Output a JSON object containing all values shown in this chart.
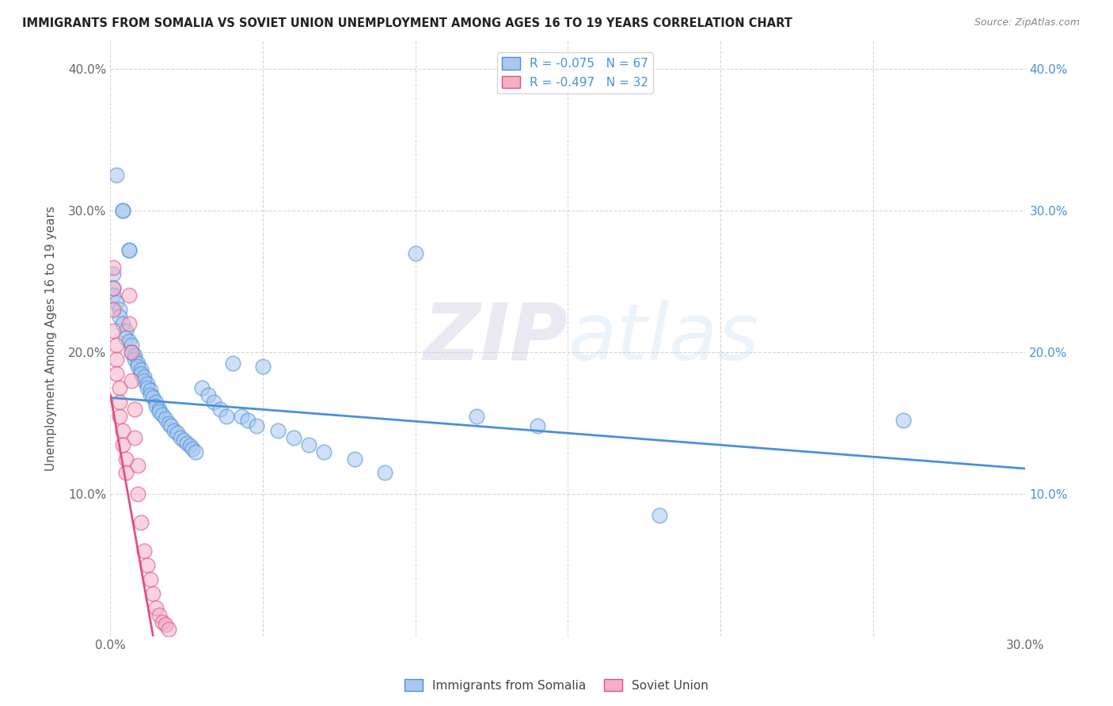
{
  "title": "IMMIGRANTS FROM SOMALIA VS SOVIET UNION UNEMPLOYMENT AMONG AGES 16 TO 19 YEARS CORRELATION CHART",
  "source": "Source: ZipAtlas.com",
  "ylabel": "Unemployment Among Ages 16 to 19 years",
  "xlim": [
    0,
    0.3
  ],
  "ylim": [
    0,
    0.42
  ],
  "xticks": [
    0.0,
    0.05,
    0.1,
    0.15,
    0.2,
    0.25,
    0.3
  ],
  "yticks": [
    0.0,
    0.1,
    0.2,
    0.3,
    0.4
  ],
  "legend_somalia": "R = -0.075   N = 67",
  "legend_soviet": "R = -0.497   N = 32",
  "legend_label_somalia": "Immigrants from Somalia",
  "legend_label_soviet": "Soviet Union",
  "somalia_color": "#a8c8f0",
  "soviet_color": "#f5b0c5",
  "somalia_line_color": "#4a90d9",
  "soviet_line_color": "#e05080",
  "watermark_zip": "ZIP",
  "watermark_atlas": "atlas",
  "somalia_x": [
    0.002,
    0.004,
    0.004,
    0.006,
    0.006,
    0.001,
    0.001,
    0.001,
    0.002,
    0.003,
    0.003,
    0.004,
    0.005,
    0.005,
    0.006,
    0.007,
    0.007,
    0.008,
    0.008,
    0.009,
    0.009,
    0.01,
    0.01,
    0.011,
    0.011,
    0.012,
    0.012,
    0.013,
    0.013,
    0.014,
    0.015,
    0.015,
    0.016,
    0.016,
    0.017,
    0.018,
    0.019,
    0.02,
    0.021,
    0.022,
    0.023,
    0.024,
    0.025,
    0.026,
    0.027,
    0.028,
    0.03,
    0.032,
    0.034,
    0.036,
    0.038,
    0.04,
    0.043,
    0.045,
    0.048,
    0.05,
    0.055,
    0.06,
    0.065,
    0.07,
    0.08,
    0.09,
    0.1,
    0.12,
    0.14,
    0.18,
    0.26
  ],
  "somalia_y": [
    0.325,
    0.3,
    0.3,
    0.272,
    0.272,
    0.255,
    0.245,
    0.24,
    0.235,
    0.23,
    0.225,
    0.22,
    0.215,
    0.21,
    0.208,
    0.205,
    0.2,
    0.198,
    0.195,
    0.192,
    0.19,
    0.188,
    0.185,
    0.183,
    0.18,
    0.178,
    0.175,
    0.173,
    0.17,
    0.168,
    0.165,
    0.162,
    0.16,
    0.158,
    0.156,
    0.153,
    0.15,
    0.148,
    0.145,
    0.143,
    0.14,
    0.138,
    0.136,
    0.134,
    0.132,
    0.13,
    0.175,
    0.17,
    0.165,
    0.16,
    0.155,
    0.192,
    0.155,
    0.152,
    0.148,
    0.19,
    0.145,
    0.14,
    0.135,
    0.13,
    0.125,
    0.115,
    0.27,
    0.155,
    0.148,
    0.085,
    0.152
  ],
  "soviet_x": [
    0.001,
    0.001,
    0.001,
    0.001,
    0.002,
    0.002,
    0.002,
    0.003,
    0.003,
    0.003,
    0.004,
    0.004,
    0.005,
    0.005,
    0.006,
    0.006,
    0.007,
    0.007,
    0.008,
    0.008,
    0.009,
    0.009,
    0.01,
    0.011,
    0.012,
    0.013,
    0.014,
    0.015,
    0.016,
    0.017,
    0.018,
    0.019
  ],
  "soviet_y": [
    0.26,
    0.245,
    0.23,
    0.215,
    0.205,
    0.195,
    0.185,
    0.175,
    0.165,
    0.155,
    0.145,
    0.135,
    0.125,
    0.115,
    0.24,
    0.22,
    0.2,
    0.18,
    0.16,
    0.14,
    0.12,
    0.1,
    0.08,
    0.06,
    0.05,
    0.04,
    0.03,
    0.02,
    0.015,
    0.01,
    0.008,
    0.005
  ],
  "somalia_trend_x": [
    0.0,
    0.3
  ],
  "somalia_trend_y": [
    0.168,
    0.118
  ],
  "soviet_trend_x": [
    0.0,
    0.014
  ],
  "soviet_trend_y": [
    0.17,
    0.0
  ]
}
